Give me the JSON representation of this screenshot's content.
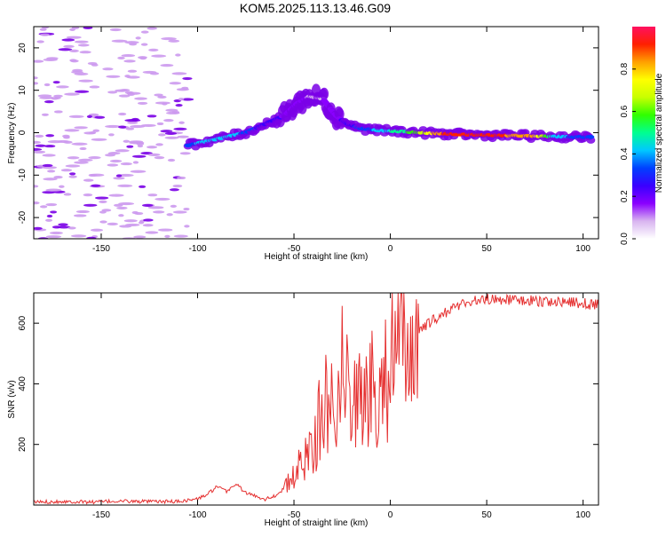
{
  "title": "KOM5.2025.113.13.46.G09",
  "colors": {
    "snr_line": "#e53030",
    "spectrum_noise": "#cc99ee",
    "spectrum_dark": "#7a00e6"
  },
  "chart_data": [
    {
      "type": "heatmap",
      "name": "spectrogram",
      "xlabel": "Height of straight line (km)",
      "ylabel": "Frequency (Hz)",
      "xlim": [
        -185,
        108
      ],
      "ylim": [
        -25,
        25
      ],
      "xticks": [
        -150,
        -100,
        -50,
        0,
        50,
        100
      ],
      "yticks": [
        -20,
        -10,
        0,
        10,
        20
      ],
      "colorbar": {
        "label": "Normalized spectral amplitude",
        "range": [
          0.0,
          1.0
        ],
        "ticks": [
          0.0,
          0.2,
          0.4,
          0.6,
          0.8
        ],
        "tick_labels": [
          "0.0",
          "0.2",
          "0.4",
          "0.6",
          "0.8"
        ],
        "colormap": [
          "#ffffff",
          "#d8b4f0",
          "#8a00ff",
          "#3a00ff",
          "#0040ff",
          "#00c8ff",
          "#00ff90",
          "#30ff00",
          "#c8ff00",
          "#ffff00",
          "#ffa000",
          "#ff2000",
          "#ff1060"
        ]
      },
      "ridge": [
        {
          "x": -105,
          "y": -3,
          "amp": 0.35
        },
        {
          "x": -95,
          "y": -2,
          "amp": 0.4
        },
        {
          "x": -85,
          "y": -1,
          "amp": 0.45
        },
        {
          "x": -75,
          "y": 0,
          "amp": 0.35
        },
        {
          "x": -65,
          "y": 2,
          "amp": 0.25
        },
        {
          "x": -55,
          "y": 4,
          "amp": 0.2
        },
        {
          "x": -48,
          "y": 7,
          "amp": 0.15
        },
        {
          "x": -42,
          "y": 8.5,
          "amp": 0.12
        },
        {
          "x": -35,
          "y": 8,
          "amp": 0.12
        },
        {
          "x": -28,
          "y": 4,
          "amp": 0.18
        },
        {
          "x": -22,
          "y": 2,
          "amp": 0.25
        },
        {
          "x": -15,
          "y": 1,
          "amp": 0.32
        },
        {
          "x": -5,
          "y": 0.5,
          "amp": 0.4
        },
        {
          "x": 5,
          "y": 0.3,
          "amp": 0.5
        },
        {
          "x": 15,
          "y": 0,
          "amp": 0.6
        },
        {
          "x": 25,
          "y": -0.2,
          "amp": 0.85
        },
        {
          "x": 35,
          "y": -0.4,
          "amp": 0.95
        },
        {
          "x": 45,
          "y": -0.5,
          "amp": 0.92
        },
        {
          "x": 55,
          "y": -0.6,
          "amp": 0.9
        },
        {
          "x": 65,
          "y": -0.7,
          "amp": 0.85
        },
        {
          "x": 75,
          "y": -0.8,
          "amp": 0.8
        },
        {
          "x": 85,
          "y": -0.9,
          "amp": 0.45
        },
        {
          "x": 95,
          "y": -1,
          "amp": 0.35
        },
        {
          "x": 105,
          "y": -1,
          "amp": 0.3
        }
      ]
    },
    {
      "type": "line",
      "name": "snr",
      "xlabel": "Height of straight line (km)",
      "ylabel": "SNR (v/v)",
      "xlim": [
        -185,
        108
      ],
      "ylim": [
        0,
        700
      ],
      "xticks": [
        -150,
        -100,
        -50,
        0,
        50,
        100
      ],
      "yticks": [
        200,
        400,
        600
      ],
      "series": [
        {
          "x": [
            -185,
            -170,
            -155,
            -140,
            -125,
            -110,
            -100,
            -95,
            -90,
            -85,
            -80,
            -75,
            -70,
            -65,
            -60,
            -55,
            -50,
            -45,
            -40,
            -35,
            -30,
            -25,
            -20,
            -15,
            -10,
            -5,
            0,
            5,
            10,
            15,
            20,
            25,
            30,
            35,
            40,
            50,
            60,
            70,
            80,
            90,
            100,
            108
          ],
          "y": [
            10,
            12,
            10,
            13,
            11,
            12,
            20,
            35,
            60,
            45,
            70,
            40,
            30,
            20,
            30,
            55,
            90,
            150,
            220,
            300,
            370,
            440,
            400,
            330,
            380,
            420,
            470,
            500,
            540,
            570,
            600,
            620,
            640,
            660,
            670,
            680,
            678,
            675,
            672,
            670,
            665,
            660
          ]
        }
      ]
    }
  ]
}
